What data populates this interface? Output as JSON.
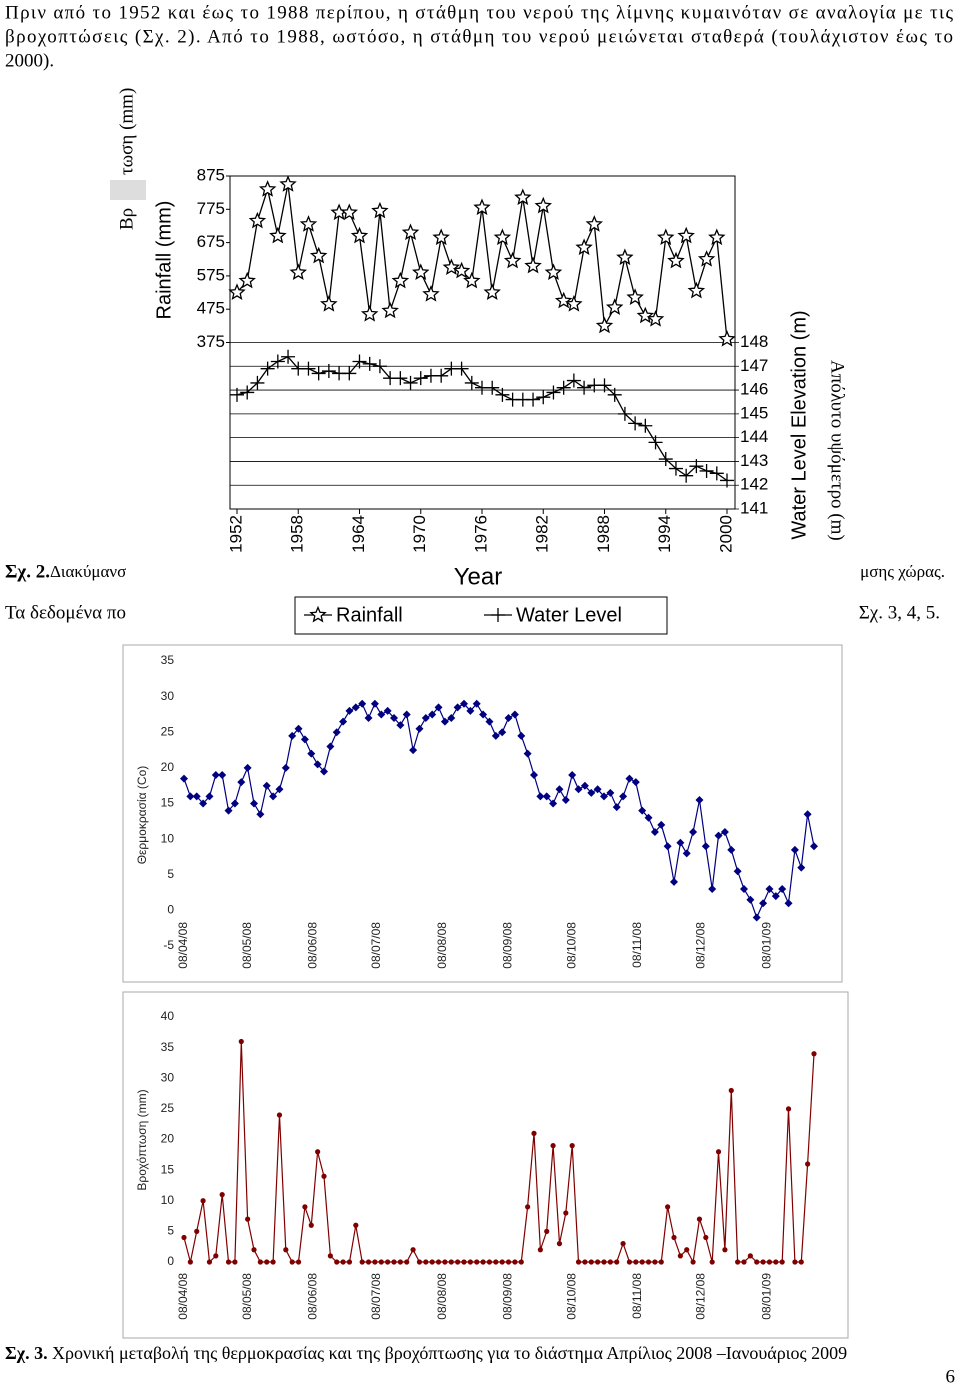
{
  "paragraph1": [
    "Πριν από το 1952 και έως το 1988 περίπου, η στάθμη του νερού της λίμνης κυμαινόταν σε αναλογία με τις",
    "βροχοπτώσεις (Σχ. 2). Από το 1988, ωστόσο, η στάθμη του νερού μειώνεται σταθερά (τουλάχιστον έως το",
    "2000)."
  ],
  "figure2_caption": {
    "label": "Σχ. 2.",
    "text_left": "Διακύμανσ",
    "text_right": "μσης χώρας."
  },
  "paragraph2": {
    "left": "Τα δεδομένα πο",
    "right": "Σχ. 3, 4, 5."
  },
  "figure2_overlays": {
    "left_top": "τωση (mm)",
    "left_bottom": "Βρ",
    "right": "Απόλυτο υψόμετρο (m)"
  },
  "chart_data": [
    {
      "type": "line",
      "x_label": "Year",
      "y_label": "Rainfall (mm)",
      "y2_label": "Water Level Elevation (m)",
      "x": [
        1952,
        1953,
        1954,
        1955,
        1956,
        1957,
        1958,
        1959,
        1960,
        1961,
        1962,
        1963,
        1964,
        1965,
        1966,
        1967,
        1968,
        1969,
        1970,
        1971,
        1972,
        1973,
        1974,
        1975,
        1976,
        1977,
        1978,
        1979,
        1980,
        1981,
        1982,
        1983,
        1984,
        1985,
        1986,
        1987,
        1988,
        1989,
        1990,
        1991,
        1992,
        1993,
        1994,
        1995,
        1996,
        1997,
        1998,
        1999,
        2000
      ],
      "xlim": [
        1952,
        2000
      ],
      "xticks": [
        1952,
        1958,
        1964,
        1970,
        1976,
        1982,
        1988,
        1994,
        2000
      ],
      "ylim": [
        -125,
        875
      ],
      "yticks": [
        375,
        475,
        575,
        675,
        775,
        875
      ],
      "y2lim": [
        141,
        155
      ],
      "y2ticks": [
        141,
        142,
        143,
        144,
        145,
        146,
        147,
        148
      ],
      "grid": true,
      "legend": "bottom",
      "series": [
        {
          "name": "Rainfall",
          "color": "#000000",
          "marker": "star",
          "values": [
            525,
            560,
            740,
            835,
            695,
            850,
            585,
            730,
            635,
            490,
            765,
            765,
            695,
            460,
            770,
            470,
            560,
            705,
            585,
            520,
            690,
            600,
            590,
            560,
            780,
            525,
            690,
            620,
            810,
            605,
            785,
            585,
            500,
            490,
            660,
            730,
            425,
            480,
            630,
            510,
            455,
            445,
            690,
            620,
            695,
            530,
            625,
            690,
            385
          ]
        },
        {
          "name": "Water Level",
          "color": "#000000",
          "marker": "plus",
          "axis": "y2",
          "values": [
            145.8,
            145.9,
            146.3,
            146.9,
            147.2,
            147.4,
            146.9,
            146.9,
            146.7,
            146.8,
            146.7,
            146.7,
            147.2,
            147.1,
            147,
            146.5,
            146.5,
            146.3,
            146.5,
            146.6,
            146.6,
            146.9,
            146.9,
            146.3,
            146.1,
            146.1,
            145.8,
            145.6,
            145.6,
            145.6,
            145.7,
            145.9,
            146.1,
            146.4,
            146.1,
            146.2,
            146.2,
            145.8,
            145,
            144.6,
            144.5,
            143.8,
            143.1,
            142.7,
            142.4,
            142.8,
            142.6,
            142.5,
            142.2
          ]
        }
      ]
    },
    {
      "type": "line",
      "y_label": "Θερμοκρασία (Co)",
      "x": [
        0,
        3,
        6,
        9,
        12,
        15,
        18,
        21,
        24,
        27,
        30,
        33,
        36,
        39,
        42,
        45,
        48,
        51,
        54,
        57,
        60,
        63,
        66,
        69,
        72,
        75,
        78,
        81,
        84,
        87,
        90,
        93,
        96,
        99,
        102,
        105,
        108,
        111,
        114,
        117,
        120,
        123,
        126,
        129,
        132,
        135,
        138,
        141,
        144,
        147,
        150,
        153,
        156,
        159,
        162,
        165,
        168,
        171,
        174,
        177,
        180,
        183,
        186,
        189,
        192,
        195,
        198,
        201,
        204,
        207,
        210,
        213,
        216,
        219,
        222,
        225,
        228,
        231,
        234,
        237,
        240,
        243,
        246,
        249,
        252,
        255,
        258,
        261,
        264,
        267,
        270,
        273,
        276,
        279,
        282,
        285,
        288,
        291,
        294,
        297
      ],
      "xlim": [
        0,
        297
      ],
      "xticks": [
        {
          "value": 0,
          "label": "08/04/08"
        },
        {
          "value": 30,
          "label": "08/05/08"
        },
        {
          "value": 61,
          "label": "08/06/08"
        },
        {
          "value": 91,
          "label": "08/07/08"
        },
        {
          "value": 122,
          "label": "08/08/08"
        },
        {
          "value": 153,
          "label": "08/09/08"
        },
        {
          "value": 183,
          "label": "08/10/08"
        },
        {
          "value": 214,
          "label": "08/11/08"
        },
        {
          "value": 244,
          "label": "08/12/08"
        },
        {
          "value": 275,
          "label": "08/01/09"
        }
      ],
      "ylim": [
        -5,
        35
      ],
      "yticks": [
        -5,
        0,
        5,
        10,
        15,
        20,
        25,
        30,
        35
      ],
      "series": [
        {
          "color": "#000080",
          "marker": "diamond",
          "values": [
            18.5,
            16,
            16,
            15,
            16,
            19,
            19,
            14,
            15,
            18,
            20,
            15,
            13.5,
            17.5,
            16,
            17,
            20,
            24.5,
            25.5,
            24,
            22,
            20.5,
            19.5,
            23,
            25,
            26.5,
            28,
            28.5,
            29,
            27,
            29,
            27.5,
            28,
            27,
            26,
            27.5,
            22.5,
            25.5,
            27,
            27.5,
            28.5,
            26.5,
            27,
            28.5,
            29,
            28,
            29,
            27.5,
            26.5,
            24.5,
            25,
            27,
            27.5,
            24.5,
            22,
            19,
            16,
            16,
            15,
            17,
            15.5,
            19,
            17,
            17.5,
            16.5,
            17,
            16,
            16.5,
            14.5,
            16,
            18.5,
            18,
            14,
            13,
            11,
            12,
            9,
            4,
            9.5,
            8,
            11,
            15.5,
            9,
            3,
            10.5,
            11,
            8.5,
            5.5,
            3,
            1.5,
            -1,
            1,
            3,
            2,
            3,
            1,
            8.5,
            6,
            13.5,
            9
          ]
        }
      ]
    },
    {
      "type": "line",
      "y_label": "Βροχόπτωση (mm)",
      "x": [
        0,
        3,
        6,
        9,
        12,
        15,
        18,
        21,
        24,
        27,
        30,
        33,
        36,
        39,
        42,
        45,
        48,
        51,
        54,
        57,
        60,
        63,
        66,
        69,
        72,
        75,
        78,
        81,
        84,
        87,
        90,
        93,
        96,
        99,
        102,
        105,
        108,
        111,
        114,
        117,
        120,
        123,
        126,
        129,
        132,
        135,
        138,
        141,
        144,
        147,
        150,
        153,
        156,
        159,
        162,
        165,
        168,
        171,
        174,
        177,
        180,
        183,
        186,
        189,
        192,
        195,
        198,
        201,
        204,
        207,
        210,
        213,
        216,
        219,
        222,
        225,
        228,
        231,
        234,
        237,
        240,
        243,
        246,
        249,
        252,
        255,
        258,
        261,
        264,
        267,
        270,
        273,
        276,
        279,
        282,
        285,
        288,
        291,
        294,
        297
      ],
      "xlim": [
        0,
        297
      ],
      "xticks": [
        {
          "value": 0,
          "label": "08/04/08"
        },
        {
          "value": 30,
          "label": "08/05/08"
        },
        {
          "value": 61,
          "label": "08/06/08"
        },
        {
          "value": 91,
          "label": "08/07/08"
        },
        {
          "value": 122,
          "label": "08/08/08"
        },
        {
          "value": 153,
          "label": "08/09/08"
        },
        {
          "value": 183,
          "label": "08/10/08"
        },
        {
          "value": 214,
          "label": "08/11/08"
        },
        {
          "value": 244,
          "label": "08/12/08"
        },
        {
          "value": 275,
          "label": "08/01/09"
        }
      ],
      "ylim": [
        0,
        40
      ],
      "yticks": [
        0,
        5,
        10,
        15,
        20,
        25,
        30,
        35,
        40
      ],
      "series": [
        {
          "color": "#800000",
          "marker": "circle",
          "values": [
            4,
            0,
            5,
            10,
            0,
            1,
            11,
            0,
            0,
            36,
            7,
            2,
            0,
            0,
            0,
            24,
            2,
            0,
            0,
            9,
            6,
            18,
            14,
            1,
            0,
            0,
            0,
            6,
            0,
            0,
            0,
            0,
            0,
            0,
            0,
            0,
            2,
            0,
            0,
            0,
            0,
            0,
            0,
            0,
            0,
            0,
            0,
            0,
            0,
            0,
            0,
            0,
            0,
            0,
            9,
            21,
            2,
            5,
            19,
            3,
            8,
            19,
            0,
            0,
            0,
            0,
            0,
            0,
            0,
            3,
            0,
            0,
            0,
            0,
            0,
            0,
            9,
            4,
            1,
            2,
            0,
            7,
            4,
            0,
            18,
            2,
            28,
            0,
            0,
            1,
            0,
            0,
            0,
            0,
            0,
            25,
            0,
            0,
            16,
            34
          ]
        }
      ]
    }
  ],
  "figure3_caption": {
    "label": "Σχ. 3.",
    "text": "Χρονική μεταβολή της θερμοκρασίας και της βροχόπτωσης για το διάστημα Απρίλιος 2008 –Ιανουάριος 2009"
  },
  "page_number": "6"
}
